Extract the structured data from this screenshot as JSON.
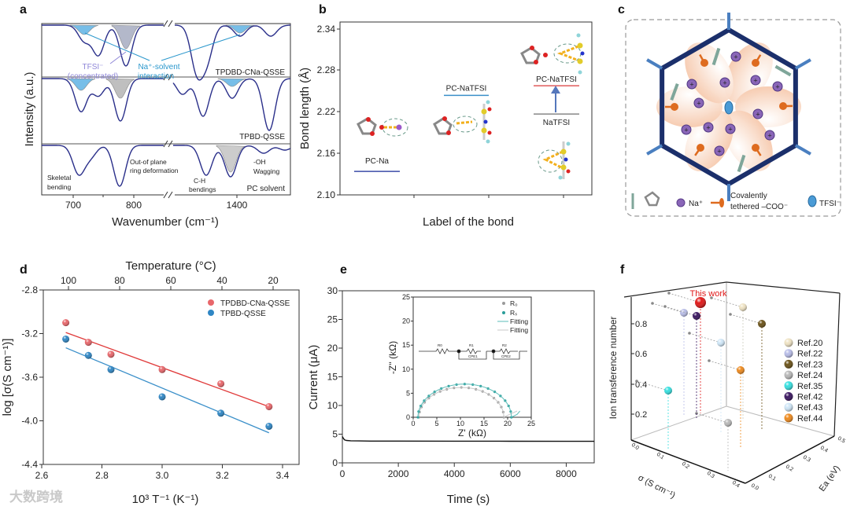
{
  "panel_a": {
    "label": "a",
    "ylabel": "Intensity (a.u.)",
    "xlabel": "Wavenumber (cm⁻¹)",
    "xticks": [
      "700",
      "800",
      "1400"
    ],
    "samples": [
      "TPDBD-CNa-QSSE",
      "TPBD-QSSE",
      "PC solvent"
    ],
    "annotations": {
      "tfsi": "TFSI⁻",
      "tfsi_sub": "(concentrated)",
      "na_solvent": "Na⁺-solvent",
      "na_solvent_sub": "interaction",
      "skeletal": "Skeletal",
      "skeletal_sub": "bending",
      "oop": "Out-of plane",
      "oop_sub": "ring deformation",
      "ch": "C-H",
      "ch_sub": "bendings",
      "oh": "-OH",
      "oh_sub": "Wagging"
    }
  },
  "panel_b": {
    "label": "b",
    "ylabel": "Bond length (Å)",
    "xlabel": "Label of the bond",
    "yticks": [
      "2.34",
      "2.28",
      "2.22",
      "2.16",
      "2.10"
    ],
    "levels": [
      {
        "name": "PC-Na",
        "value": 2.134,
        "color": "#3b4ba8"
      },
      {
        "name": "PC-NaTFSI",
        "value": 2.244,
        "color": "#3a8fc9"
      },
      {
        "name": "PC-NaTFSI",
        "value": 2.258,
        "color": "#e05a5a"
      },
      {
        "name": "NaTFSI",
        "value": 2.217,
        "color": "#888888"
      }
    ]
  },
  "panel_c": {
    "label": "c",
    "legend": {
      "na": "Na⁺",
      "coo_1": "Covalently",
      "coo_2": "tethered –COO⁻",
      "tfsi": "TFSI⁻"
    }
  },
  "chart_data": [
    {
      "panel": "d",
      "type": "scatter",
      "label": "d",
      "title": "",
      "top_axis_label": "Temperature (°C)",
      "top_ticks": [
        "100",
        "80",
        "60",
        "40",
        "20"
      ],
      "xlabel": "10³ T⁻¹ (K⁻¹)",
      "ylabel": "log [σ(S cm⁻¹)]",
      "xlim": [
        2.6,
        3.45
      ],
      "ylim": [
        -4.4,
        -2.8
      ],
      "xticks": [
        "2.6",
        "2.8",
        "3.0",
        "3.2",
        "3.4"
      ],
      "yticks": [
        "-2.8",
        "-3.2",
        "-3.6",
        "-4.0",
        "-4.4"
      ],
      "legend_position": "top-right",
      "series": [
        {
          "name": "TPDBD-CNa-QSSE",
          "color": "#e8676b",
          "x": [
            2.68,
            2.755,
            2.83,
            3.0,
            3.195,
            3.355
          ],
          "y": [
            -3.1,
            -3.28,
            -3.39,
            -3.53,
            -3.66,
            -3.87
          ],
          "fit": [
            [
              2.68,
              -3.19
            ],
            [
              3.355,
              -3.87
            ]
          ]
        },
        {
          "name": "TPBD-QSSE",
          "color": "#2f86c4",
          "x": [
            2.68,
            2.755,
            2.83,
            3.0,
            3.195,
            3.355
          ],
          "y": [
            -3.25,
            -3.4,
            -3.53,
            -3.78,
            -3.93,
            -4.05
          ],
          "fit": [
            [
              2.68,
              -3.33
            ],
            [
              3.355,
              -4.11
            ]
          ]
        }
      ]
    },
    {
      "panel": "e",
      "type": "line",
      "label": "e",
      "xlabel": "Time (s)",
      "ylabel": "Current (μA)",
      "xlim": [
        0,
        9000
      ],
      "ylim": [
        0,
        30
      ],
      "xticks": [
        "0",
        "2000",
        "4000",
        "6000",
        "8000"
      ],
      "yticks": [
        "0",
        "5",
        "10",
        "15",
        "20",
        "25",
        "30"
      ],
      "series": [
        {
          "name": "current",
          "color": "#111111",
          "x": [
            0,
            30,
            80,
            150,
            300,
            600,
            1000,
            2000,
            4000,
            6000,
            8000,
            9000
          ],
          "y": [
            4.6,
            4.3,
            4.0,
            3.9,
            3.85,
            3.82,
            3.8,
            3.8,
            3.78,
            3.77,
            3.76,
            3.76
          ]
        }
      ],
      "inset": {
        "type": "scatter",
        "xlabel": "Z' (kΩ)",
        "ylabel": "-Z'' (kΩ)",
        "xlim": [
          0,
          25
        ],
        "ylim": [
          0,
          25
        ],
        "xticks": [
          "0",
          "5",
          "10",
          "15",
          "20",
          "25"
        ],
        "yticks": [
          "0",
          "5",
          "10",
          "15",
          "20",
          "25"
        ],
        "circuit": [
          "R0",
          "R1",
          "CPE1",
          "R2",
          "CPE2"
        ],
        "legend": [
          "R₀",
          "Rₛ",
          "Fitting",
          "Fitting"
        ],
        "series": [
          {
            "name": "R0",
            "color": "#9a9a9a",
            "center": 10.2,
            "radius": 9.0,
            "peak": 6.2,
            "tail_end": 22.0
          },
          {
            "name": "Rs",
            "color": "#2a9d9a",
            "center": 10.9,
            "radius": 9.9,
            "peak": 6.9,
            "tail_end": 22.6
          }
        ]
      }
    },
    {
      "panel": "f",
      "type": "scatter",
      "label": "f",
      "title_annotation": "This work",
      "zlabel": "Ion transference number",
      "xlabel": "σ (S cm⁻¹)",
      "ylabel": "Ea (eV)",
      "zticks": [
        "0.2",
        "0.4",
        "0.6",
        "0.8"
      ],
      "xticks": [
        "0.0",
        "0.1",
        "0.2",
        "0.3",
        "0.4"
      ],
      "yticks": [
        "0.0",
        "0.1",
        "0.2",
        "0.3",
        "0.4",
        "0.5"
      ],
      "legend_position": "right",
      "series": [
        {
          "name": "This work",
          "color": "#e01818"
        },
        {
          "name": "Ref.20",
          "color": "#efe3c4"
        },
        {
          "name": "Ref.22",
          "color": "#b8bde8"
        },
        {
          "name": "Ref.23",
          "color": "#6b5218"
        },
        {
          "name": "Ref.24",
          "color": "#b9b9b9"
        },
        {
          "name": "Ref.35",
          "color": "#36e0e0"
        },
        {
          "name": "Ref.42",
          "color": "#3a1660"
        },
        {
          "name": "Ref.43",
          "color": "#cfe6f7"
        },
        {
          "name": "Ref.44",
          "color": "#ee8a1e"
        }
      ]
    }
  ],
  "watermark": "大数跨境"
}
